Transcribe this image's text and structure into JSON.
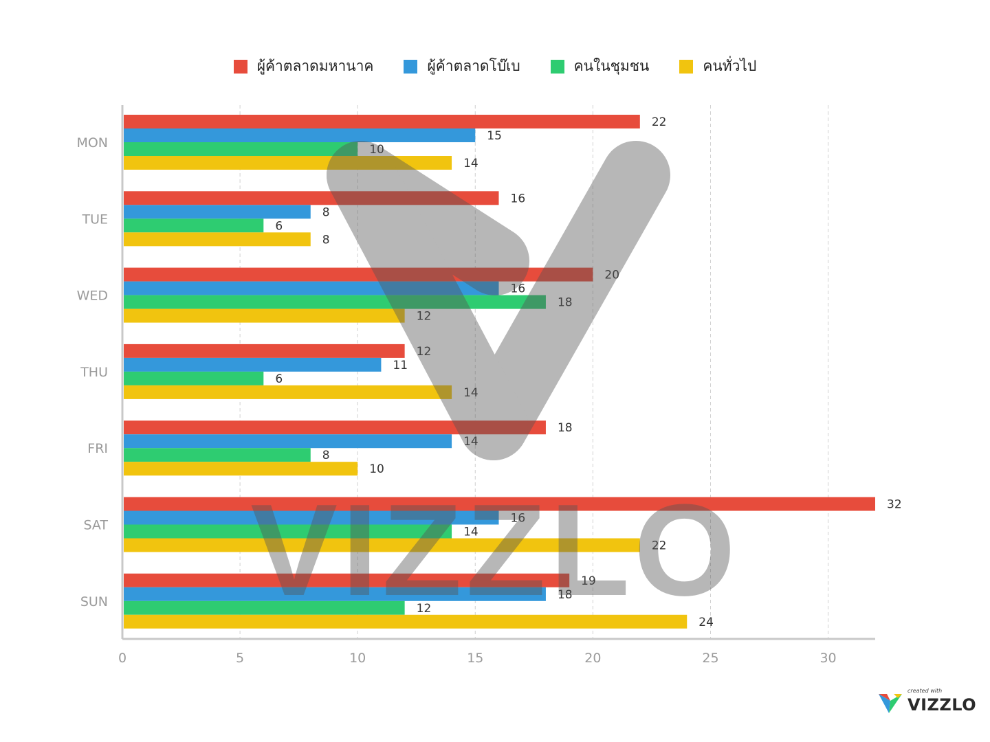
{
  "colors": {
    "series": [
      "#e74c3c",
      "#3498db",
      "#2ecc71",
      "#f1c40f"
    ],
    "axis": "#c8c8c8",
    "grid": "#d0d0d0",
    "tick": "#9a9a9a"
  },
  "chart_data": {
    "type": "bar",
    "orientation": "horizontal",
    "categories": [
      "MON",
      "TUE",
      "WED",
      "THU",
      "FRI",
      "SAT",
      "SUN"
    ],
    "series": [
      {
        "name": "ผู้ค้าตลาดมหานาค",
        "values": [
          22,
          16,
          20,
          12,
          18,
          32,
          19
        ]
      },
      {
        "name": "ผู้ค้าตลาดโบ๊เบ",
        "values": [
          15,
          8,
          16,
          11,
          14,
          16,
          18
        ]
      },
      {
        "name": "คนในชุมชน",
        "values": [
          10,
          6,
          18,
          6,
          8,
          14,
          12
        ]
      },
      {
        "name": "คนทั่วไป",
        "values": [
          14,
          8,
          12,
          14,
          10,
          22,
          24
        ]
      }
    ],
    "xlim": [
      0,
      32
    ],
    "xticks": [
      "0",
      "5",
      "10",
      "15",
      "20",
      "25",
      "30"
    ],
    "grid": true,
    "legend": "top-center",
    "data_labels": true
  },
  "watermark": {
    "text": "VIZZLO"
  },
  "brand": {
    "small": "created with",
    "name": "VIZZLO"
  }
}
